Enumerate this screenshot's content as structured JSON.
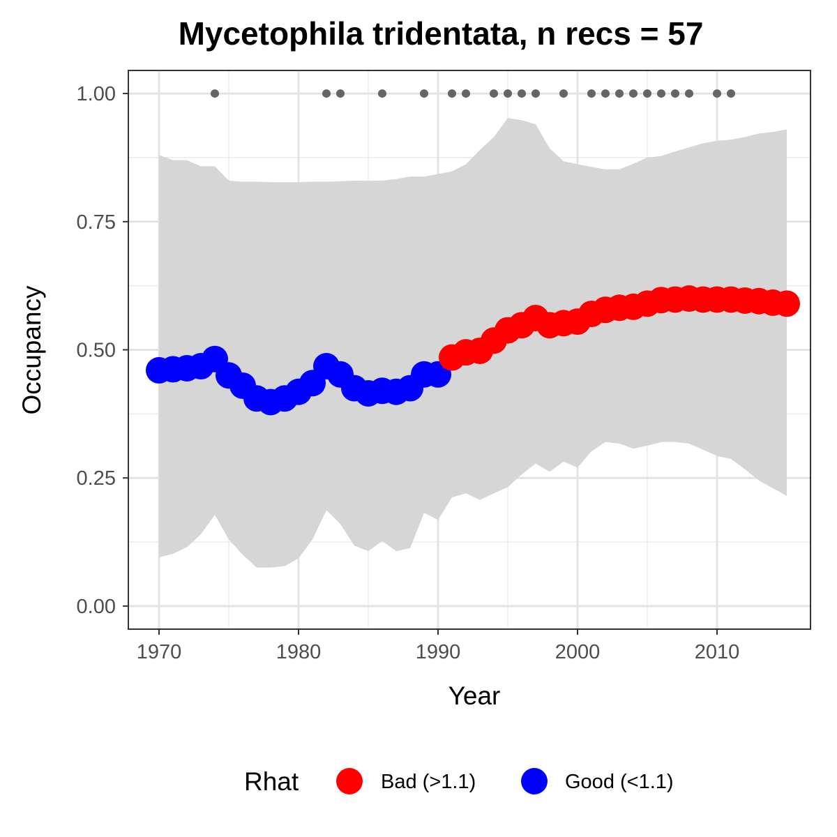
{
  "chart_data": {
    "type": "line",
    "title": "Mycetophila tridentata, n recs = 57",
    "xlabel": "Year",
    "ylabel": "Occupancy",
    "xlim": [
      1967.8,
      2016.7
    ],
    "ylim": [
      -0.045,
      1.045
    ],
    "x_ticks": [
      1970,
      1980,
      1990,
      2000,
      2010
    ],
    "x_tick_labels": [
      "1970",
      "1980",
      "1990",
      "2000",
      "2010"
    ],
    "y_ticks": [
      0,
      0.25,
      0.5,
      0.75,
      1.0
    ],
    "y_tick_labels": [
      "0.00",
      "0.25",
      "0.50",
      "0.75",
      "1.00"
    ],
    "grid": true,
    "years": [
      1970,
      1971,
      1972,
      1973,
      1974,
      1975,
      1976,
      1977,
      1978,
      1979,
      1980,
      1981,
      1982,
      1983,
      1984,
      1985,
      1986,
      1987,
      1988,
      1989,
      1990,
      1991,
      1992,
      1993,
      1994,
      1995,
      1996,
      1997,
      1998,
      1999,
      2000,
      2001,
      2002,
      2003,
      2004,
      2005,
      2006,
      2007,
      2008,
      2009,
      2010,
      2011,
      2012,
      2013,
      2014,
      2015
    ],
    "occupancy": [
      0.46,
      0.462,
      0.464,
      0.468,
      0.482,
      0.45,
      0.43,
      0.405,
      0.398,
      0.405,
      0.418,
      0.435,
      0.468,
      0.452,
      0.425,
      0.415,
      0.42,
      0.418,
      0.425,
      0.452,
      0.452,
      0.485,
      0.495,
      0.498,
      0.518,
      0.538,
      0.548,
      0.562,
      0.548,
      0.552,
      0.555,
      0.57,
      0.578,
      0.582,
      0.584,
      0.59,
      0.597,
      0.598,
      0.6,
      0.598,
      0.598,
      0.598,
      0.596,
      0.595,
      0.592,
      0.59
    ],
    "rhat": [
      "Good",
      "Good",
      "Good",
      "Good",
      "Good",
      "Good",
      "Good",
      "Good",
      "Good",
      "Good",
      "Good",
      "Good",
      "Good",
      "Good",
      "Good",
      "Good",
      "Good",
      "Good",
      "Good",
      "Good",
      "Good",
      "Bad",
      "Bad",
      "Bad",
      "Bad",
      "Bad",
      "Bad",
      "Bad",
      "Bad",
      "Bad",
      "Bad",
      "Bad",
      "Bad",
      "Bad",
      "Bad",
      "Bad",
      "Bad",
      "Bad",
      "Bad",
      "Bad",
      "Bad",
      "Bad",
      "Bad",
      "Bad",
      "Bad",
      "Bad"
    ],
    "upper_ci": [
      0.88,
      0.87,
      0.87,
      0.858,
      0.858,
      0.83,
      0.828,
      0.828,
      0.827,
      0.827,
      0.827,
      0.828,
      0.828,
      0.829,
      0.83,
      0.83,
      0.83,
      0.833,
      0.838,
      0.838,
      0.843,
      0.848,
      0.862,
      0.89,
      0.915,
      0.952,
      0.948,
      0.94,
      0.893,
      0.868,
      0.862,
      0.857,
      0.852,
      0.852,
      0.863,
      0.875,
      0.878,
      0.887,
      0.895,
      0.903,
      0.908,
      0.91,
      0.915,
      0.922,
      0.925,
      0.93
    ],
    "lower_ci": [
      0.095,
      0.102,
      0.115,
      0.14,
      0.178,
      0.13,
      0.1,
      0.075,
      0.075,
      0.078,
      0.093,
      0.13,
      0.187,
      0.16,
      0.118,
      0.107,
      0.127,
      0.107,
      0.113,
      0.182,
      0.168,
      0.212,
      0.22,
      0.207,
      0.22,
      0.232,
      0.257,
      0.278,
      0.262,
      0.282,
      0.27,
      0.302,
      0.32,
      0.317,
      0.307,
      0.313,
      0.32,
      0.32,
      0.317,
      0.305,
      0.293,
      0.287,
      0.267,
      0.245,
      0.23,
      0.215
    ],
    "record_years": [
      1974,
      1982,
      1983,
      1986,
      1989,
      1991,
      1992,
      1994,
      1995,
      1996,
      1997,
      1999,
      2001,
      2002,
      2003,
      2004,
      2005,
      2006,
      2007,
      2008,
      2010,
      2011
    ],
    "record_marker_y": 1.0,
    "legend": {
      "title": "Rhat",
      "position": "bottom",
      "items": [
        {
          "key": "Bad",
          "label": "Bad (>1.1)",
          "color": "#ff0000"
        },
        {
          "key": "Good",
          "label": "Good (<1.1)",
          "color": "#0000ff"
        }
      ]
    },
    "colors": {
      "bad": "#ff0000",
      "good": "#0000ff",
      "ribbon": "#d6d6d6",
      "record_marker": "#666666"
    }
  }
}
